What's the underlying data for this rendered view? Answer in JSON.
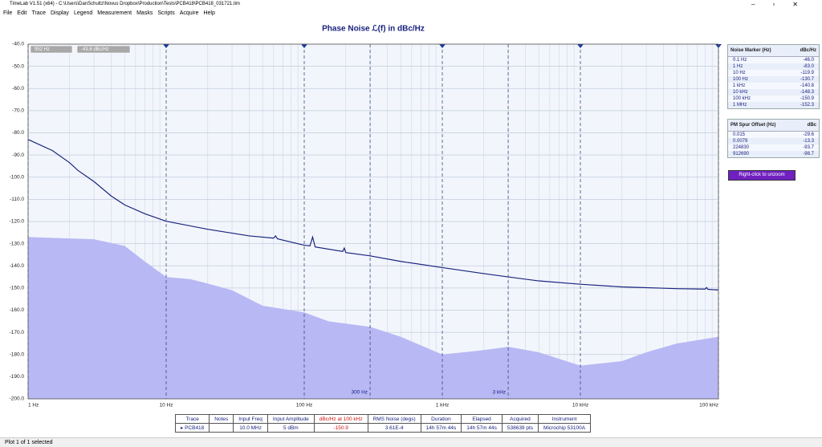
{
  "window": {
    "title": "TimeLab V1.51 (x64) - C:\\Users\\DanSchultz\\Novus Dropbox\\Production\\Tests\\PCB418\\PCB418_031721.tim"
  },
  "menu": [
    "File",
    "Edit",
    "Trace",
    "Display",
    "Legend",
    "Measurement",
    "Masks",
    "Scripts",
    "Acquire",
    "Help"
  ],
  "chart_data": {
    "type": "line",
    "title": "Phase Noise ℒ(f) in dBc/Hz",
    "xlog": true,
    "grid": true,
    "xlim": [
      1,
      100000
    ],
    "xticks": [
      {
        "value": 1,
        "label": "1 Hz"
      },
      {
        "value": 10,
        "label": "10 Hz"
      },
      {
        "value": 100,
        "label": "100 Hz"
      },
      {
        "value": 1000,
        "label": "1 kHz"
      },
      {
        "value": 10000,
        "label": "10 kHz"
      },
      {
        "value": 100000,
        "label": "100 kHz"
      }
    ],
    "ylim": [
      -200,
      -40
    ],
    "yticks": [
      {
        "value": -40,
        "label": "-40.0"
      },
      {
        "value": -50,
        "label": "-50.0"
      },
      {
        "value": -60,
        "label": "-60.0"
      },
      {
        "value": -70,
        "label": "-70.0"
      },
      {
        "value": -80,
        "label": "-80.0"
      },
      {
        "value": -90,
        "label": "-90.0"
      },
      {
        "value": -100,
        "label": "-100.0"
      },
      {
        "value": -110,
        "label": "-110.0"
      },
      {
        "value": -120,
        "label": "-120.0"
      },
      {
        "value": -130,
        "label": "-130.0"
      },
      {
        "value": -140,
        "label": "-140.0"
      },
      {
        "value": -150,
        "label": "-150.0"
      },
      {
        "value": -160,
        "label": "-160.0"
      },
      {
        "value": -170,
        "label": "-170.0"
      },
      {
        "value": -180,
        "label": "-180.0"
      },
      {
        "value": -190,
        "label": "-190.0"
      },
      {
        "value": -200,
        "label": "-200.0"
      }
    ],
    "cursor": [
      "952 Hz",
      "-43.6 dBc/Hz"
    ],
    "annotations": [
      {
        "x": 300,
        "label": "300 Hz"
      },
      {
        "x": 3000,
        "label": "3 kHz"
      }
    ],
    "series": [
      {
        "color": "#1a237e",
        "x": [
          1,
          1.5,
          2,
          2.3,
          3,
          4,
          5,
          7,
          10,
          20,
          40,
          60,
          62,
          64,
          100,
          110,
          115,
          120,
          190,
          195,
          200,
          300,
          500,
          1000,
          2000,
          3000,
          5000,
          10000,
          20000,
          50000,
          80000,
          82000,
          84000,
          100000
        ],
        "values": [
          -83,
          -88,
          -93.5,
          -97,
          -102,
          -108.5,
          -112.5,
          -116.5,
          -119.9,
          -123.5,
          -126.5,
          -127.5,
          -126.5,
          -127.8,
          -130.7,
          -131,
          -127,
          -131.5,
          -133.5,
          -132,
          -134,
          -135.5,
          -138,
          -140.8,
          -143.5,
          -145,
          -146.8,
          -148.3,
          -149.5,
          -150.3,
          -150.5,
          -149.8,
          -150.6,
          -150.9
        ]
      },
      {
        "color": "#b8b8f4",
        "fill": true,
        "x": [
          1,
          3,
          5,
          7,
          10,
          15,
          20,
          30,
          50,
          100,
          150,
          300,
          500,
          1000,
          2000,
          3000,
          5000,
          10000,
          20000,
          30000,
          50000,
          100000
        ],
        "values": [
          -127,
          -128,
          -131,
          -138,
          -145,
          -146,
          -148,
          -151,
          -158,
          -161,
          -165,
          -167.5,
          -172,
          -180,
          -178,
          -176.5,
          -179,
          -185,
          -183,
          -179,
          -175,
          -172
        ]
      }
    ]
  },
  "noise_marker": {
    "header": [
      "Noise Marker (Hz)",
      "dBc/Hz"
    ],
    "rows": [
      [
        "0.1 Hz",
        "-46.0"
      ],
      [
        "1 Hz",
        "-83.0"
      ],
      [
        "10 Hz",
        "-119.9"
      ],
      [
        "100 Hz",
        "-130.7"
      ],
      [
        "1 kHz",
        "-140.8"
      ],
      [
        "10 kHz",
        "-148.3"
      ],
      [
        "100 kHz",
        "-150.9"
      ],
      [
        "1 MHz",
        "-152.3"
      ]
    ]
  },
  "spur": {
    "header": [
      "PM Spur Offset (Hz)",
      "dBc"
    ],
    "rows": [
      [
        "0.015",
        "-29.6"
      ],
      [
        "0.0079",
        "-13.3"
      ],
      [
        "224830",
        "-93.7"
      ],
      [
        "912690",
        "-98.7"
      ]
    ]
  },
  "unzoom": "Right-click to unzoom",
  "trace_table": {
    "header": [
      "Trace",
      "Notes",
      "Input Freq",
      "Input Amplitude",
      "dBc/Hz at 100 kHz",
      "RMS Noise (degs)",
      "Duration",
      "Elapsed",
      "Acquired",
      "Instrument"
    ],
    "row": {
      "trace": "PCB418",
      "input_freq": "10.0 MHz",
      "input_amplitude": "5 dBm",
      "dbc": "-150.9",
      "rms": "3.61E-4",
      "duration": "14h 57m 44s",
      "elapsed": "14h 57m 44s",
      "acquired": "538639 pts",
      "instrument": "Microchip 53100A"
    }
  },
  "status": "Plot 1 of 1 selected"
}
